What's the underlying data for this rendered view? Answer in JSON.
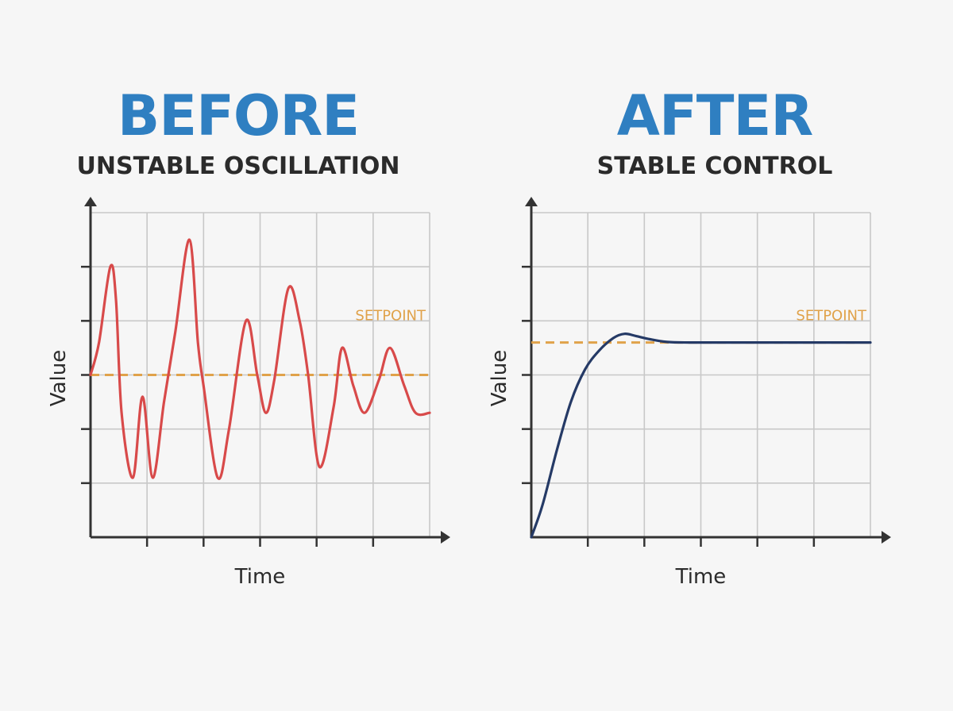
{
  "colors": {
    "heading": "#2f7fc1",
    "subtitle": "#2b2b2b",
    "before_line": "#d84a4a",
    "after_line": "#253a66",
    "setpoint": "#e0a24a",
    "grid": "#c8c8c8",
    "axis": "#333333"
  },
  "chart_data": [
    {
      "type": "line",
      "panel_title": "BEFORE",
      "subtitle": "UNSTABLE OSCILLATION",
      "xlabel": "Time",
      "ylabel": "Value",
      "setpoint_label": "SETPOINT",
      "grid": true,
      "xlim": [
        0,
        6
      ],
      "ylim": [
        0,
        6
      ],
      "setpoint": 3,
      "series": [
        {
          "x": [
            0,
            0.15,
            0.35,
            0.45,
            0.55,
            0.75,
            0.92,
            1.1,
            1.3,
            1.5,
            1.75,
            1.9,
            2.0,
            2.25,
            2.45,
            2.75,
            2.95,
            3.1,
            3.25,
            3.5,
            3.7,
            3.85,
            4.05,
            4.3,
            4.45,
            4.65,
            4.85,
            5.1,
            5.3,
            5.55,
            5.75,
            6.0
          ],
          "y": [
            3,
            3.6,
            5.0,
            4.4,
            2.3,
            1.1,
            2.6,
            1.1,
            2.5,
            3.8,
            5.5,
            3.6,
            2.8,
            1.1,
            2.0,
            4.0,
            3.0,
            2.3,
            2.9,
            4.6,
            4.0,
            3.0,
            1.3,
            2.4,
            3.5,
            2.8,
            2.3,
            2.9,
            3.5,
            2.8,
            2.3,
            2.3
          ]
        }
      ]
    },
    {
      "type": "line",
      "panel_title": "AFTER",
      "subtitle": "STABLE CONTROL",
      "xlabel": "Time",
      "ylabel": "Value",
      "setpoint_label": "SETPOINT",
      "grid": true,
      "xlim": [
        0,
        6
      ],
      "ylim": [
        0,
        6
      ],
      "setpoint": 3.6,
      "series": [
        {
          "x": [
            0,
            0.2,
            0.45,
            0.7,
            0.95,
            1.2,
            1.45,
            1.65,
            1.85,
            2.1,
            2.4,
            2.8,
            3.5,
            4.5,
            6.0
          ],
          "y": [
            0,
            0.6,
            1.6,
            2.5,
            3.1,
            3.45,
            3.68,
            3.76,
            3.72,
            3.66,
            3.61,
            3.6,
            3.6,
            3.6,
            3.6
          ]
        }
      ]
    }
  ]
}
